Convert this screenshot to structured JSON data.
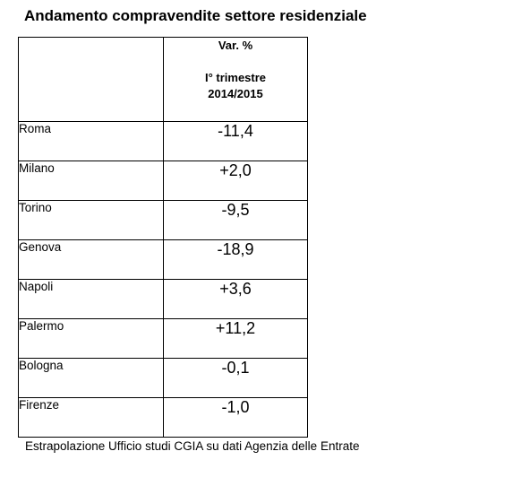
{
  "title": "Andamento compravendite settore residenziale",
  "table": {
    "header": {
      "line1": "Var. %",
      "line2": "I° trimestre",
      "line3": "2014/2015"
    },
    "rows": [
      {
        "city": "Roma",
        "value": "-11,4"
      },
      {
        "city": "Milano",
        "value": "+2,0"
      },
      {
        "city": "Torino",
        "value": "-9,5"
      },
      {
        "city": "Genova",
        "value": "-18,9"
      },
      {
        "city": "Napoli",
        "value": "+3,6"
      },
      {
        "city": "Palermo",
        "value": "+11,2"
      },
      {
        "city": "Bologna",
        "value": "-0,1"
      },
      {
        "city": "Firenze",
        "value": "-1,0"
      }
    ]
  },
  "source": "Estrapolazione Ufficio studi CGIA su dati Agenzia delle Entrate"
}
